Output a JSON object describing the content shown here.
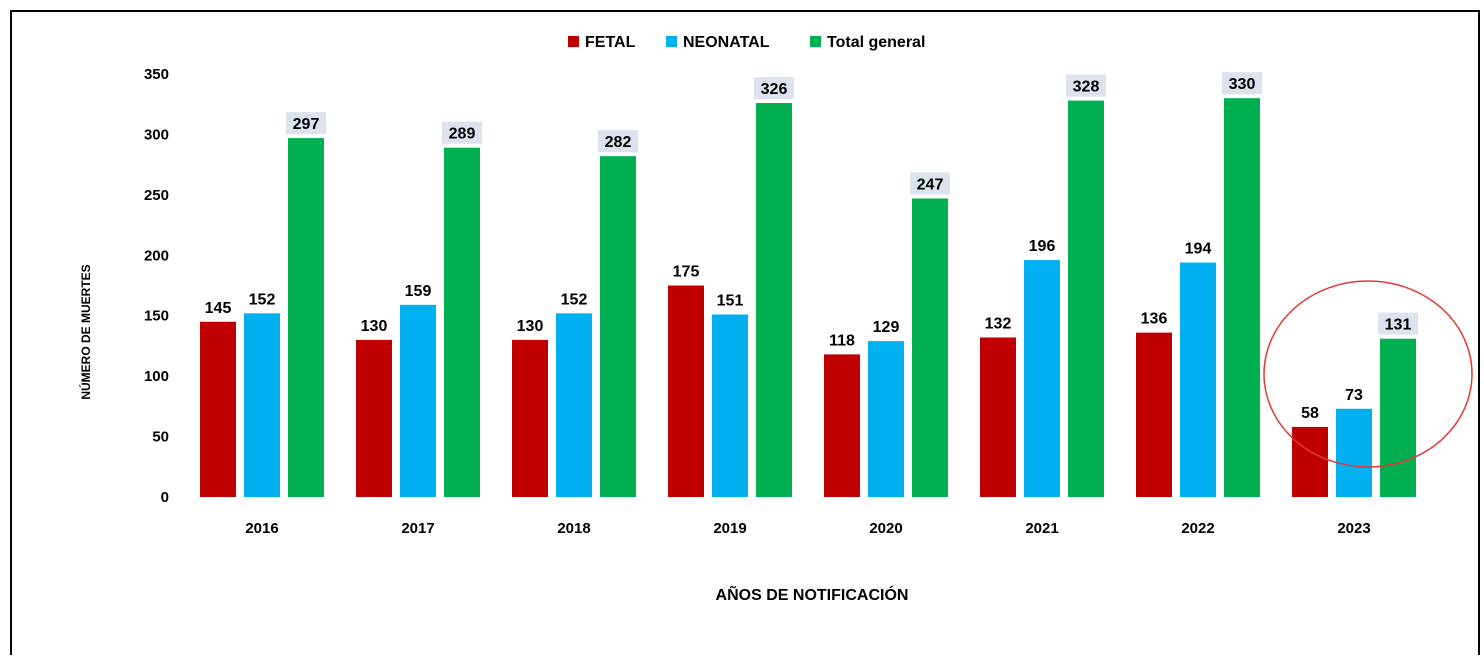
{
  "chart_data": {
    "type": "bar",
    "title": "",
    "xlabel": "AÑOS DE NOTIFICACIÓN",
    "ylabel": "NÚMERO DE MUERTES",
    "ylim": [
      0,
      350
    ],
    "yticks": [
      0,
      50,
      100,
      150,
      200,
      250,
      300,
      350
    ],
    "grid": false,
    "legend_position": "top-center",
    "categories": [
      "2016",
      "2017",
      "2018",
      "2019",
      "2020",
      "2021",
      "2022",
      "2023"
    ],
    "series": [
      {
        "name": "FETAL",
        "color": "#c00000",
        "values": [
          145,
          130,
          130,
          175,
          118,
          132,
          136,
          58
        ]
      },
      {
        "name": "NEONATAL",
        "color": "#00b0f0",
        "values": [
          152,
          159,
          152,
          151,
          129,
          196,
          194,
          73
        ]
      },
      {
        "name": "Total general",
        "color": "#00b050",
        "values": [
          297,
          289,
          282,
          326,
          247,
          328,
          330,
          131
        ]
      }
    ],
    "highlight": {
      "category": "2023",
      "shape": "circle",
      "color": "#e53935"
    },
    "total_label_background": "#dce3ee"
  }
}
